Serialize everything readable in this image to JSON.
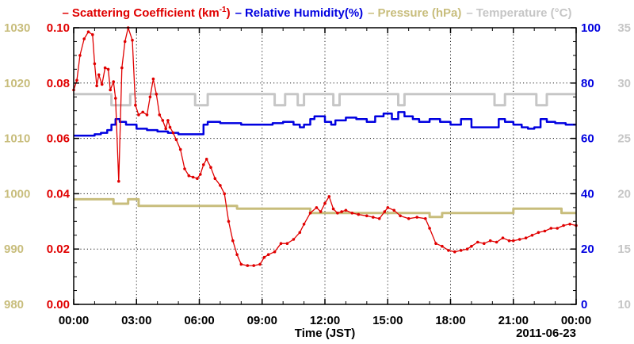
{
  "colors": {
    "scattering": "#e00000",
    "humidity": "#0000e0",
    "pressure": "#c8bd7c",
    "temperature": "#c6c6c6",
    "axis": "#000000"
  },
  "legend": {
    "scattering": {
      "dash": "–",
      "label": "Scattering Coefficient (km",
      "sup": "-1",
      "close": ")"
    },
    "humidity": {
      "dash": "–",
      "label": "Relative Humidity(%)"
    },
    "pressure": {
      "dash": "–",
      "label": "Pressure (hPa)"
    },
    "temperature": {
      "dash": "–",
      "label": "Temperature (°C)"
    }
  },
  "chart_data": {
    "type": "line",
    "xlabel": "Time (JST)",
    "date_label": "2011-06-23",
    "xlim": [
      0,
      24
    ],
    "x_ticks": [
      "00:00",
      "03:00",
      "06:00",
      "09:00",
      "12:00",
      "15:00",
      "18:00",
      "21:00",
      "00:00"
    ],
    "grid": true,
    "axes": {
      "scattering": {
        "side": "left-inner",
        "lim": [
          0,
          0.1
        ],
        "ticks": [
          "0.00",
          "0.02",
          "0.04",
          "0.06",
          "0.08",
          "0.10"
        ]
      },
      "pressure": {
        "side": "left-outer",
        "lim": [
          980,
          1030
        ],
        "ticks": [
          "980",
          "990",
          "1000",
          "1010",
          "1020",
          "1030"
        ]
      },
      "humidity": {
        "side": "right-inner",
        "lim": [
          0,
          100
        ],
        "ticks": [
          "0",
          "20",
          "40",
          "60",
          "80",
          "100"
        ]
      },
      "temperature": {
        "side": "right-outer",
        "lim": [
          10,
          35
        ],
        "ticks": [
          "10",
          "15",
          "20",
          "25",
          "30",
          "35"
        ]
      }
    },
    "series": [
      {
        "name": "Scattering Coefficient (km-1)",
        "axis": "scattering",
        "points": [
          [
            0.0,
            0.0775
          ],
          [
            0.15,
            0.081
          ],
          [
            0.3,
            0.09
          ],
          [
            0.5,
            0.096
          ],
          [
            0.7,
            0.0985
          ],
          [
            0.9,
            0.0975
          ],
          [
            1.0,
            0.087
          ],
          [
            1.1,
            0.079
          ],
          [
            1.2,
            0.083
          ],
          [
            1.35,
            0.0795
          ],
          [
            1.5,
            0.0855
          ],
          [
            1.65,
            0.085
          ],
          [
            1.75,
            0.0775
          ],
          [
            1.9,
            0.0805
          ],
          [
            2.0,
            0.0745
          ],
          [
            2.15,
            0.0445
          ],
          [
            2.3,
            0.0855
          ],
          [
            2.45,
            0.095
          ],
          [
            2.6,
            0.1
          ],
          [
            2.8,
            0.0955
          ],
          [
            2.95,
            0.072
          ],
          [
            3.1,
            0.0685
          ],
          [
            3.3,
            0.0695
          ],
          [
            3.5,
            0.0685
          ],
          [
            3.65,
            0.075
          ],
          [
            3.8,
            0.0815
          ],
          [
            3.95,
            0.076
          ],
          [
            4.1,
            0.0685
          ],
          [
            4.25,
            0.0665
          ],
          [
            4.4,
            0.0635
          ],
          [
            4.5,
            0.0665
          ],
          [
            4.6,
            0.064
          ],
          [
            4.75,
            0.062
          ],
          [
            4.9,
            0.0595
          ],
          [
            5.1,
            0.056
          ],
          [
            5.3,
            0.049
          ],
          [
            5.5,
            0.0465
          ],
          [
            5.7,
            0.046
          ],
          [
            5.9,
            0.0455
          ],
          [
            6.05,
            0.047
          ],
          [
            6.2,
            0.0505
          ],
          [
            6.35,
            0.0525
          ],
          [
            6.55,
            0.0495
          ],
          [
            6.75,
            0.0455
          ],
          [
            7.0,
            0.043
          ],
          [
            7.2,
            0.04
          ],
          [
            7.4,
            0.03
          ],
          [
            7.6,
            0.023
          ],
          [
            7.8,
            0.018
          ],
          [
            8.0,
            0.0145
          ],
          [
            8.3,
            0.014
          ],
          [
            8.6,
            0.014
          ],
          [
            8.9,
            0.0145
          ],
          [
            9.1,
            0.017
          ],
          [
            9.3,
            0.018
          ],
          [
            9.6,
            0.019
          ],
          [
            9.9,
            0.022
          ],
          [
            10.2,
            0.022
          ],
          [
            10.5,
            0.0235
          ],
          [
            10.8,
            0.026
          ],
          [
            11.0,
            0.029
          ],
          [
            11.3,
            0.033
          ],
          [
            11.6,
            0.035
          ],
          [
            11.8,
            0.0335
          ],
          [
            12.0,
            0.0365
          ],
          [
            12.2,
            0.039
          ],
          [
            12.4,
            0.0345
          ],
          [
            12.6,
            0.033
          ],
          [
            12.8,
            0.0335
          ],
          [
            13.0,
            0.034
          ],
          [
            13.3,
            0.033
          ],
          [
            13.6,
            0.0325
          ],
          [
            14.0,
            0.032
          ],
          [
            14.3,
            0.0315
          ],
          [
            14.6,
            0.031
          ],
          [
            14.85,
            0.0335
          ],
          [
            15.0,
            0.035
          ],
          [
            15.3,
            0.034
          ],
          [
            15.6,
            0.032
          ],
          [
            16.0,
            0.031
          ],
          [
            16.4,
            0.0315
          ],
          [
            16.8,
            0.031
          ],
          [
            17.0,
            0.0275
          ],
          [
            17.3,
            0.022
          ],
          [
            17.6,
            0.021
          ],
          [
            17.9,
            0.0195
          ],
          [
            18.2,
            0.019
          ],
          [
            18.5,
            0.0195
          ],
          [
            18.8,
            0.02
          ],
          [
            19.0,
            0.021
          ],
          [
            19.3,
            0.0225
          ],
          [
            19.6,
            0.022
          ],
          [
            19.9,
            0.023
          ],
          [
            20.2,
            0.0225
          ],
          [
            20.5,
            0.024
          ],
          [
            20.8,
            0.023
          ],
          [
            21.0,
            0.023
          ],
          [
            21.3,
            0.0235
          ],
          [
            21.6,
            0.024
          ],
          [
            21.9,
            0.025
          ],
          [
            22.2,
            0.026
          ],
          [
            22.5,
            0.0265
          ],
          [
            22.8,
            0.0275
          ],
          [
            23.1,
            0.0275
          ],
          [
            23.4,
            0.0285
          ],
          [
            23.7,
            0.029
          ],
          [
            24.0,
            0.0285
          ]
        ]
      },
      {
        "name": "Relative Humidity(%)",
        "axis": "humidity",
        "points": [
          [
            0.0,
            61
          ],
          [
            1.0,
            61.5
          ],
          [
            1.3,
            62
          ],
          [
            1.6,
            63
          ],
          [
            1.8,
            65
          ],
          [
            2.0,
            67
          ],
          [
            2.2,
            66
          ],
          [
            2.5,
            65
          ],
          [
            3.0,
            63.5
          ],
          [
            3.5,
            63
          ],
          [
            4.0,
            62.5
          ],
          [
            4.5,
            62
          ],
          [
            5.0,
            61.5
          ],
          [
            6.0,
            61.5
          ],
          [
            6.2,
            65
          ],
          [
            6.4,
            66
          ],
          [
            7.0,
            65.5
          ],
          [
            8.0,
            65
          ],
          [
            9.0,
            65
          ],
          [
            9.5,
            65.5
          ],
          [
            10.0,
            66
          ],
          [
            10.5,
            65
          ],
          [
            10.8,
            64
          ],
          [
            11.0,
            65
          ],
          [
            11.3,
            67
          ],
          [
            11.5,
            68
          ],
          [
            12.0,
            66
          ],
          [
            12.3,
            65
          ],
          [
            12.5,
            66.5
          ],
          [
            13.0,
            67.5
          ],
          [
            13.5,
            67
          ],
          [
            14.0,
            66
          ],
          [
            14.4,
            68
          ],
          [
            14.8,
            69
          ],
          [
            15.2,
            67
          ],
          [
            15.5,
            69.5
          ],
          [
            15.8,
            68
          ],
          [
            16.2,
            67
          ],
          [
            16.5,
            66
          ],
          [
            17.0,
            67
          ],
          [
            17.5,
            66
          ],
          [
            18.0,
            65
          ],
          [
            18.5,
            67
          ],
          [
            19.0,
            64
          ],
          [
            19.5,
            64
          ],
          [
            20.0,
            64
          ],
          [
            20.3,
            67
          ],
          [
            20.6,
            66
          ],
          [
            21.0,
            65
          ],
          [
            21.4,
            64
          ],
          [
            21.7,
            63.5
          ],
          [
            22.0,
            64
          ],
          [
            22.3,
            67
          ],
          [
            22.6,
            66
          ],
          [
            23.0,
            65.5
          ],
          [
            23.5,
            65
          ],
          [
            24.0,
            65
          ]
        ]
      },
      {
        "name": "Pressure (hPa)",
        "axis": "pressure",
        "points": [
          [
            0.0,
            999
          ],
          [
            1.9,
            999
          ],
          [
            1.9,
            998.2
          ],
          [
            2.6,
            998.2
          ],
          [
            2.6,
            999
          ],
          [
            3.1,
            999
          ],
          [
            3.1,
            997.8
          ],
          [
            4.0,
            997.8
          ],
          [
            6.0,
            997.8
          ],
          [
            7.8,
            997.8
          ],
          [
            7.8,
            997.3
          ],
          [
            10.5,
            997.3
          ],
          [
            11.3,
            997.3
          ],
          [
            11.3,
            996.5
          ],
          [
            17.0,
            996.5
          ],
          [
            17.0,
            995.8
          ],
          [
            17.6,
            995.8
          ],
          [
            17.6,
            996.5
          ],
          [
            21.0,
            996.5
          ],
          [
            21.0,
            997.3
          ],
          [
            23.3,
            997.3
          ],
          [
            23.3,
            996.5
          ],
          [
            24.0,
            996.5
          ]
        ]
      },
      {
        "name": "Temperature (°C)",
        "axis": "temperature",
        "points": [
          [
            0.0,
            29
          ],
          [
            1.8,
            29
          ],
          [
            1.8,
            28
          ],
          [
            2.7,
            28
          ],
          [
            2.7,
            29
          ],
          [
            5.8,
            29
          ],
          [
            5.8,
            28
          ],
          [
            6.4,
            28
          ],
          [
            6.4,
            29
          ],
          [
            9.6,
            29
          ],
          [
            9.6,
            28
          ],
          [
            10.1,
            28
          ],
          [
            10.1,
            29
          ],
          [
            10.7,
            29
          ],
          [
            10.7,
            28
          ],
          [
            11.0,
            28
          ],
          [
            11.0,
            29
          ],
          [
            12.4,
            29
          ],
          [
            12.4,
            28
          ],
          [
            12.7,
            28
          ],
          [
            12.7,
            29
          ],
          [
            15.5,
            29
          ],
          [
            15.5,
            28
          ],
          [
            15.8,
            28
          ],
          [
            15.8,
            29
          ],
          [
            20.1,
            29
          ],
          [
            20.1,
            28
          ],
          [
            20.6,
            28
          ],
          [
            20.6,
            29
          ],
          [
            22.1,
            29
          ],
          [
            22.1,
            28
          ],
          [
            22.6,
            28
          ],
          [
            22.6,
            29
          ],
          [
            24.0,
            29
          ]
        ]
      }
    ]
  }
}
